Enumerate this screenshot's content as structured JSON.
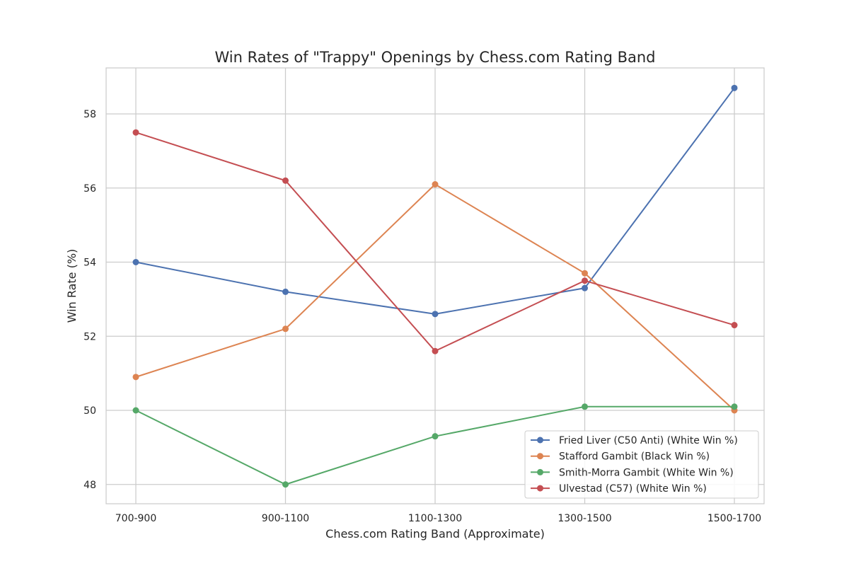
{
  "chart_data": {
    "type": "line",
    "title": "Win Rates of \"Trappy\" Openings by Chess.com Rating Band",
    "xlabel": "Chess.com Rating Band (Approximate)",
    "ylabel": "Win Rate (%)",
    "categories": [
      "700-900",
      "900-1100",
      "1100-1300",
      "1300-1500",
      "1500-1700"
    ],
    "y_ticks": [
      48,
      50,
      52,
      54,
      56,
      58
    ],
    "ylim": [
      47.5,
      59.25
    ],
    "grid": true,
    "legend_position": "lower-right",
    "series": [
      {
        "name": "Fried Liver (C50 Anti) (White Win %)",
        "color": "#4c72b0",
        "values": [
          54.0,
          53.2,
          52.6,
          53.3,
          58.7
        ]
      },
      {
        "name": "Stafford Gambit (Black Win %)",
        "color": "#dd8452",
        "values": [
          50.9,
          52.2,
          56.1,
          53.7,
          50.0
        ]
      },
      {
        "name": "Smith-Morra Gambit (White Win %)",
        "color": "#55a868",
        "values": [
          50.0,
          48.0,
          49.3,
          50.1,
          50.1
        ]
      },
      {
        "name": "Ulvestad (C57) (White Win %)",
        "color": "#c44e52",
        "values": [
          57.5,
          56.2,
          51.6,
          53.5,
          52.3
        ]
      }
    ]
  }
}
